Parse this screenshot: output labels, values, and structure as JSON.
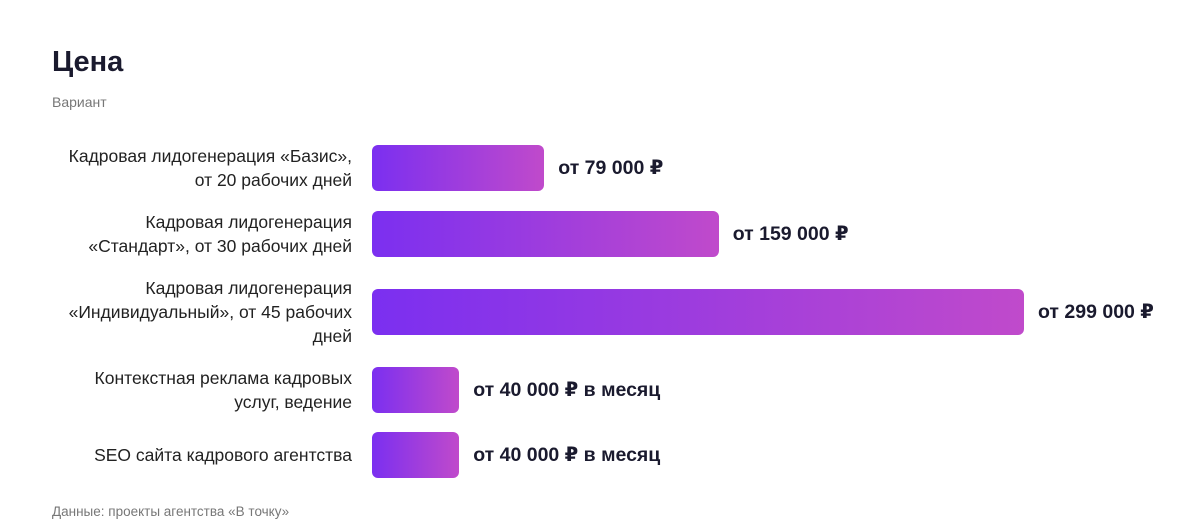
{
  "chart_data": {
    "type": "bar",
    "orientation": "horizontal",
    "title": "Цена",
    "subtitle": "Вариант",
    "categories": [
      "Кадровая лидогенерация «Базис», от 20 рабочих дней",
      "Кадровая лидогенерация «Стандарт», от 30 рабочих дней",
      "Кадровая лидогенерация «Индивидуальный», от 45 рабочих дней",
      "Контекстная реклама кадровых услуг, ведение",
      "SEO сайта кадрового агентства"
    ],
    "values": [
      79000,
      159000,
      299000,
      40000,
      40000
    ],
    "value_labels": [
      "от 79 000 ₽",
      "от 159 000 ₽",
      "от 299 000 ₽",
      "от 40 000 ₽ в месяц",
      "от 40 000 ₽ в месяц"
    ],
    "color": [
      "#7b2ff0",
      "#c04acb"
    ],
    "source": "Данные: проекты агентства «В точку»"
  }
}
